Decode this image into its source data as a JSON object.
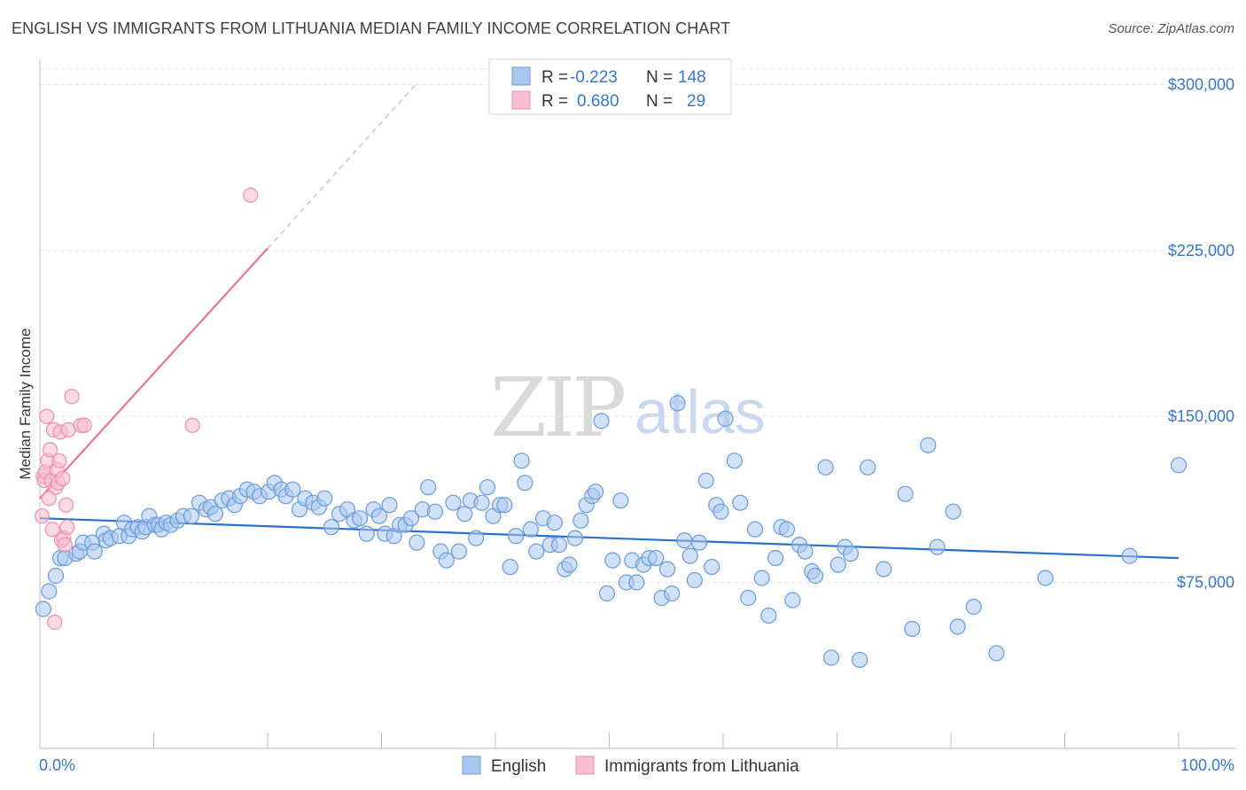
{
  "header": {
    "title": "ENGLISH VS IMMIGRANTS FROM LITHUANIA MEDIAN FAMILY INCOME CORRELATION CHART",
    "source": "Source: ZipAtlas.com"
  },
  "watermark": {
    "part1": "ZIP",
    "part2": "atlas"
  },
  "legend_box": {
    "rows": [
      {
        "r_label": "R =",
        "r_value": "-0.223",
        "n_label": "N =",
        "n_value": "148",
        "color": "#a9c6ee"
      },
      {
        "r_label": "R =",
        "r_value": "0.680",
        "n_label": "N =",
        "n_value": "29",
        "color": "#f5b3c8"
      }
    ]
  },
  "colors": {
    "english_fill": "#a9c6ee",
    "english_stroke": "#6a9bd8",
    "english_line": "#2a6fc9",
    "lith_fill": "#f7bcd0",
    "lith_stroke": "#ec8fae",
    "lith_line": "#e8739a",
    "axis_label": "#3a75c4"
  },
  "chart_data": {
    "type": "scatter",
    "title": "ENGLISH VS IMMIGRANTS FROM LITHUANIA MEDIAN FAMILY INCOME CORRELATION CHART",
    "xlabel": "",
    "ylabel": "Median Family Income",
    "x_tick_labels": [
      "0.0%",
      "100.0%"
    ],
    "y_tick_labels": [
      "$75,000",
      "$150,000",
      "$225,000",
      "$300,000"
    ],
    "y_ticks": [
      75000,
      150000,
      225000,
      300000
    ],
    "xlim": [
      0,
      100
    ],
    "ylim": [
      0,
      307000
    ],
    "grid": true,
    "legend_position": "bottom",
    "series": [
      {
        "name": "English",
        "r": -0.223,
        "n": 148,
        "trend": {
          "x": [
            0,
            100
          ],
          "y": [
            104000,
            86000
          ]
        },
        "points": [
          [
            0.3,
            63000
          ],
          [
            0.8,
            71000
          ],
          [
            1.4,
            78000
          ],
          [
            1.8,
            86000
          ],
          [
            2.2,
            86000
          ],
          [
            3.2,
            88000
          ],
          [
            3.5,
            89000
          ],
          [
            3.8,
            93000
          ],
          [
            4.6,
            93000
          ],
          [
            4.8,
            89000
          ],
          [
            5.6,
            97000
          ],
          [
            5.8,
            94000
          ],
          [
            6.2,
            95000
          ],
          [
            7.0,
            96000
          ],
          [
            7.4,
            102000
          ],
          [
            7.8,
            96000
          ],
          [
            8.1,
            99000
          ],
          [
            8.6,
            100000
          ],
          [
            9.0,
            98000
          ],
          [
            9.3,
            100000
          ],
          [
            9.6,
            105000
          ],
          [
            10.1,
            101000
          ],
          [
            10.4,
            101000
          ],
          [
            10.7,
            99000
          ],
          [
            11.1,
            102000
          ],
          [
            11.5,
            101000
          ],
          [
            12.1,
            103000
          ],
          [
            12.6,
            105000
          ],
          [
            13.3,
            105000
          ],
          [
            14.0,
            111000
          ],
          [
            14.6,
            108000
          ],
          [
            15.0,
            109000
          ],
          [
            15.4,
            106000
          ],
          [
            16.0,
            112000
          ],
          [
            16.6,
            113000
          ],
          [
            17.1,
            110000
          ],
          [
            17.6,
            114000
          ],
          [
            18.2,
            117000
          ],
          [
            18.8,
            116000
          ],
          [
            19.3,
            114000
          ],
          [
            20.1,
            116000
          ],
          [
            20.6,
            120000
          ],
          [
            21.2,
            117000
          ],
          [
            21.6,
            114000
          ],
          [
            22.2,
            117000
          ],
          [
            22.8,
            108000
          ],
          [
            23.3,
            113000
          ],
          [
            24.0,
            111000
          ],
          [
            24.5,
            109000
          ],
          [
            25.0,
            113000
          ],
          [
            25.6,
            100000
          ],
          [
            26.3,
            106000
          ],
          [
            27.0,
            108000
          ],
          [
            27.6,
            103000
          ],
          [
            28.1,
            104000
          ],
          [
            28.7,
            97000
          ],
          [
            29.3,
            108000
          ],
          [
            29.8,
            105000
          ],
          [
            30.3,
            97000
          ],
          [
            30.7,
            110000
          ],
          [
            31.1,
            96000
          ],
          [
            31.6,
            101000
          ],
          [
            32.1,
            101000
          ],
          [
            32.6,
            104000
          ],
          [
            33.1,
            93000
          ],
          [
            33.6,
            108000
          ],
          [
            34.1,
            118000
          ],
          [
            34.7,
            107000
          ],
          [
            35.2,
            89000
          ],
          [
            35.7,
            85000
          ],
          [
            36.3,
            111000
          ],
          [
            36.8,
            89000
          ],
          [
            37.3,
            106000
          ],
          [
            37.8,
            112000
          ],
          [
            38.3,
            95000
          ],
          [
            38.8,
            111000
          ],
          [
            39.3,
            118000
          ],
          [
            39.8,
            105000
          ],
          [
            40.4,
            110000
          ],
          [
            40.8,
            110000
          ],
          [
            41.3,
            82000
          ],
          [
            41.8,
            96000
          ],
          [
            42.3,
            130000
          ],
          [
            42.6,
            120000
          ],
          [
            43.1,
            99000
          ],
          [
            43.6,
            89000
          ],
          [
            44.2,
            104000
          ],
          [
            44.8,
            92000
          ],
          [
            45.2,
            102000
          ],
          [
            45.6,
            92000
          ],
          [
            46.1,
            81000
          ],
          [
            46.5,
            83000
          ],
          [
            47.0,
            95000
          ],
          [
            47.5,
            103000
          ],
          [
            48.0,
            110000
          ],
          [
            48.5,
            114000
          ],
          [
            48.8,
            116000
          ],
          [
            49.3,
            148000
          ],
          [
            49.8,
            70000
          ],
          [
            50.3,
            85000
          ],
          [
            51.0,
            112000
          ],
          [
            51.5,
            75000
          ],
          [
            52.0,
            85000
          ],
          [
            52.4,
            75000
          ],
          [
            53.0,
            83000
          ],
          [
            53.5,
            86000
          ],
          [
            54.1,
            86000
          ],
          [
            54.6,
            68000
          ],
          [
            55.1,
            81000
          ],
          [
            55.5,
            70000
          ],
          [
            56.0,
            156000
          ],
          [
            56.6,
            94000
          ],
          [
            57.1,
            87000
          ],
          [
            57.5,
            76000
          ],
          [
            57.9,
            93000
          ],
          [
            58.5,
            121000
          ],
          [
            59.0,
            82000
          ],
          [
            59.4,
            110000
          ],
          [
            59.8,
            107000
          ],
          [
            60.2,
            149000
          ],
          [
            61.0,
            130000
          ],
          [
            61.5,
            111000
          ],
          [
            62.2,
            68000
          ],
          [
            62.8,
            99000
          ],
          [
            63.4,
            77000
          ],
          [
            64.0,
            60000
          ],
          [
            64.6,
            86000
          ],
          [
            65.1,
            100000
          ],
          [
            65.6,
            99000
          ],
          [
            66.1,
            67000
          ],
          [
            66.7,
            92000
          ],
          [
            67.2,
            89000
          ],
          [
            67.8,
            80000
          ],
          [
            68.1,
            78000
          ],
          [
            69.0,
            127000
          ],
          [
            69.5,
            41000
          ],
          [
            70.1,
            83000
          ],
          [
            70.7,
            91000
          ],
          [
            71.2,
            88000
          ],
          [
            72.0,
            40000
          ],
          [
            72.7,
            127000
          ],
          [
            74.1,
            81000
          ],
          [
            76.0,
            115000
          ],
          [
            76.6,
            54000
          ],
          [
            78.0,
            137000
          ],
          [
            78.8,
            91000
          ],
          [
            80.2,
            107000
          ],
          [
            80.6,
            55000
          ],
          [
            82.0,
            64000
          ],
          [
            84.0,
            43000
          ],
          [
            88.3,
            77000
          ],
          [
            95.7,
            87000
          ],
          [
            100.0,
            128000
          ]
        ]
      },
      {
        "name": "Immigrants from Lithuania",
        "r": 0.68,
        "n": 29,
        "trend": {
          "x": [
            0,
            20
          ],
          "y": [
            113000,
            226000
          ],
          "dashed_extension_to": [
            33,
            300000
          ]
        },
        "points": [
          [
            0.2,
            105000
          ],
          [
            0.3,
            123000
          ],
          [
            0.4,
            121000
          ],
          [
            0.5,
            125000
          ],
          [
            0.6,
            150000
          ],
          [
            0.7,
            130000
          ],
          [
            0.8,
            113000
          ],
          [
            0.9,
            135000
          ],
          [
            1.0,
            121000
          ],
          [
            1.1,
            99000
          ],
          [
            1.2,
            144000
          ],
          [
            1.3,
            57000
          ],
          [
            1.4,
            118000
          ],
          [
            1.5,
            126000
          ],
          [
            1.6,
            120000
          ],
          [
            1.7,
            130000
          ],
          [
            1.8,
            143000
          ],
          [
            1.9,
            94000
          ],
          [
            2.0,
            122000
          ],
          [
            2.1,
            95000
          ],
          [
            2.2,
            92000
          ],
          [
            2.3,
            110000
          ],
          [
            2.4,
            100000
          ],
          [
            2.5,
            144000
          ],
          [
            2.8,
            159000
          ],
          [
            3.6,
            146000
          ],
          [
            3.9,
            146000
          ],
          [
            13.4,
            146000
          ],
          [
            18.5,
            250000
          ]
        ]
      }
    ]
  }
}
